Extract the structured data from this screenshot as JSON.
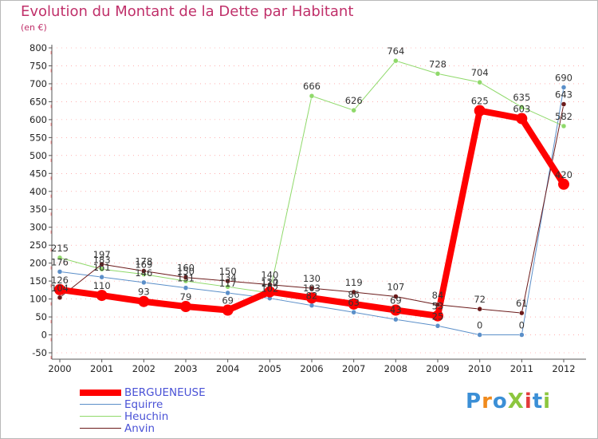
{
  "title": "Evolution du Montant de la Dette par Habitant",
  "unit": "(en €)",
  "logo": "ProXiti",
  "colors": {
    "title": "#c0306a",
    "grid": "#ff8080",
    "axis": "#555555",
    "legend_text": "#4a52d6"
  },
  "chart_data": {
    "type": "line",
    "title": "Evolution du Montant de la Dette par Habitant",
    "ylabel": "(en €)",
    "xlabel": "",
    "ylim": [
      -50,
      800
    ],
    "yticks": [
      -50,
      0,
      50,
      100,
      150,
      200,
      250,
      300,
      350,
      400,
      450,
      500,
      550,
      600,
      650,
      700,
      750,
      800
    ],
    "grid": "horizontal dashed",
    "legend_position": "bottom-left",
    "categories": [
      "2000",
      "2001",
      "2002",
      "2003",
      "2004",
      "2005",
      "2006",
      "2007",
      "2008",
      "2009",
      "2010",
      "2011",
      "2012"
    ],
    "series": [
      {
        "name": "BERGUENEUSE",
        "color": "#ff0000",
        "width": 8,
        "marker": 7,
        "values": [
          126,
          110,
          93,
          79,
          69,
          120,
          103,
          86,
          69,
          53,
          625,
          603,
          420
        ]
      },
      {
        "name": "Equirre",
        "color": "#5b8fc9",
        "width": 1,
        "marker": 3,
        "values": [
          176,
          161,
          146,
          131,
          117,
          102,
          82,
          63,
          43,
          25,
          0,
          0,
          690
        ]
      },
      {
        "name": "Heuchin",
        "color": "#8fd96a",
        "width": 1,
        "marker": 3,
        "values": [
          215,
          183,
          169,
          150,
          134,
          117,
          666,
          626,
          764,
          728,
          704,
          635,
          582
        ]
      },
      {
        "name": "Anvin",
        "color": "#6b1a1a",
        "width": 1,
        "marker": 3,
        "values": [
          104,
          197,
          178,
          160,
          150,
          140,
          130,
          119,
          107,
          84,
          72,
          61,
          643
        ]
      }
    ]
  }
}
